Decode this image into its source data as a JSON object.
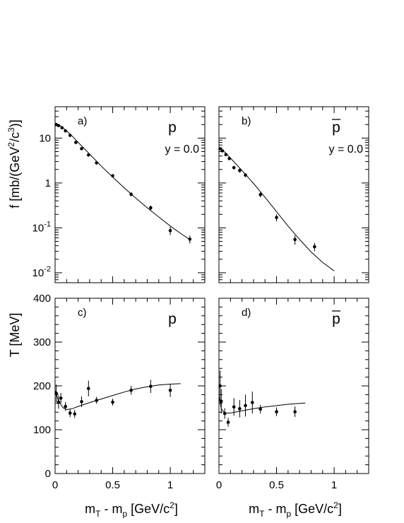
{
  "figure": {
    "ylabel_top": "f [mb/(GeV",
    "ylabel_top_sup1": "2",
    "ylabel_top_mid": "/c",
    "ylabel_top_sup2": "3",
    "ylabel_top_end": ")]",
    "ylabel_bottom": "T [MeV]",
    "xlabel_main": "m",
    "xlabel_sub1": "T",
    "xlabel_mid": " - m",
    "xlabel_sub2": "p",
    "xlabel_end": " [GeV/c",
    "xlabel_sup": "2",
    "xlabel_close": "]"
  },
  "chart_data": [
    {
      "id": "a",
      "type": "scatter",
      "panel_label": "a)",
      "particle": "p",
      "particle_bar": false,
      "rapidity": "y = 0.0",
      "yscale": "log",
      "xlim": [
        0,
        1.3
      ],
      "ylim": [
        0.006,
        50
      ],
      "ytick_labels": [
        {
          "v": 0.01,
          "base": "10",
          "exp": "-2"
        },
        {
          "v": 0.1,
          "base": "10",
          "exp": "-1"
        },
        {
          "v": 1,
          "base": "1",
          "exp": ""
        },
        {
          "v": 10,
          "base": "10",
          "exp": ""
        }
      ],
      "points": [
        {
          "x": 0.01,
          "y": 20,
          "err": 1.2
        },
        {
          "x": 0.03,
          "y": 19,
          "err": 1.2
        },
        {
          "x": 0.06,
          "y": 17,
          "err": 1.0
        },
        {
          "x": 0.09,
          "y": 14.5,
          "err": 1.0
        },
        {
          "x": 0.13,
          "y": 11.5,
          "err": 0.8
        },
        {
          "x": 0.18,
          "y": 8.0,
          "err": 0.5
        },
        {
          "x": 0.23,
          "y": 5.8,
          "err": 0.4
        },
        {
          "x": 0.29,
          "y": 4.2,
          "err": 0.3
        },
        {
          "x": 0.36,
          "y": 2.8,
          "err": 0.2
        },
        {
          "x": 0.5,
          "y": 1.45,
          "err": 0.12
        },
        {
          "x": 0.66,
          "y": 0.56,
          "err": 0.06
        },
        {
          "x": 0.83,
          "y": 0.28,
          "err": 0.035
        },
        {
          "x": 1.0,
          "y": 0.087,
          "err": 0.018
        },
        {
          "x": 1.17,
          "y": 0.056,
          "err": 0.011
        }
      ],
      "fit": [
        {
          "x": 0.0,
          "y": 21.5
        },
        {
          "x": 0.05,
          "y": 18.5
        },
        {
          "x": 0.1,
          "y": 14.5
        },
        {
          "x": 0.15,
          "y": 11
        },
        {
          "x": 0.2,
          "y": 8.0
        },
        {
          "x": 0.3,
          "y": 4.4
        },
        {
          "x": 0.4,
          "y": 2.4
        },
        {
          "x": 0.5,
          "y": 1.35
        },
        {
          "x": 0.6,
          "y": 0.78
        },
        {
          "x": 0.7,
          "y": 0.46
        },
        {
          "x": 0.8,
          "y": 0.28
        },
        {
          "x": 0.9,
          "y": 0.175
        },
        {
          "x": 1.0,
          "y": 0.11
        },
        {
          "x": 1.1,
          "y": 0.072
        },
        {
          "x": 1.17,
          "y": 0.055
        }
      ]
    },
    {
      "id": "b",
      "type": "scatter",
      "panel_label": "b)",
      "particle": "p",
      "particle_bar": true,
      "rapidity": "y = 0.0",
      "yscale": "log",
      "xlim": [
        0,
        1.3
      ],
      "ylim": [
        0.006,
        50
      ],
      "ytick_labels": [],
      "points": [
        {
          "x": 0.01,
          "y": 5.8,
          "err": 0.4
        },
        {
          "x": 0.03,
          "y": 5.2,
          "err": 0.4
        },
        {
          "x": 0.06,
          "y": 4.3,
          "err": 0.35
        },
        {
          "x": 0.09,
          "y": 3.5,
          "err": 0.3
        },
        {
          "x": 0.13,
          "y": 2.2,
          "err": 0.2
        },
        {
          "x": 0.18,
          "y": 1.9,
          "err": 0.2
        },
        {
          "x": 0.23,
          "y": 1.5,
          "err": 0.15
        },
        {
          "x": 0.36,
          "y": 0.55,
          "err": 0.07
        },
        {
          "x": 0.5,
          "y": 0.17,
          "err": 0.03
        },
        {
          "x": 0.66,
          "y": 0.055,
          "err": 0.013
        },
        {
          "x": 0.83,
          "y": 0.038,
          "err": 0.008
        }
      ],
      "fit": [
        {
          "x": 0.0,
          "y": 6.0
        },
        {
          "x": 0.05,
          "y": 4.9
        },
        {
          "x": 0.1,
          "y": 3.6
        },
        {
          "x": 0.2,
          "y": 1.9
        },
        {
          "x": 0.3,
          "y": 0.98
        },
        {
          "x": 0.4,
          "y": 0.48
        },
        {
          "x": 0.5,
          "y": 0.23
        },
        {
          "x": 0.6,
          "y": 0.11
        },
        {
          "x": 0.7,
          "y": 0.055
        },
        {
          "x": 0.8,
          "y": 0.029
        },
        {
          "x": 0.9,
          "y": 0.017
        },
        {
          "x": 1.0,
          "y": 0.011
        }
      ]
    },
    {
      "id": "c",
      "type": "scatter",
      "panel_label": "c)",
      "particle": "p",
      "particle_bar": false,
      "rapidity": "",
      "yscale": "linear",
      "xlim": [
        0,
        1.3
      ],
      "ylim": [
        0,
        400
      ],
      "xtick_labels": [
        {
          "v": 0,
          "label": "0"
        },
        {
          "v": 0.5,
          "label": "0.5"
        },
        {
          "v": 1,
          "label": "1"
        }
      ],
      "ytick_labels": [
        {
          "v": 0,
          "label": "0"
        },
        {
          "v": 100,
          "label": "100"
        },
        {
          "v": 200,
          "label": "200"
        },
        {
          "v": 300,
          "label": "300"
        },
        {
          "v": 400,
          "label": "400"
        }
      ],
      "points": [
        {
          "x": 0.01,
          "y": 183,
          "err": 20
        },
        {
          "x": 0.03,
          "y": 163,
          "err": 15
        },
        {
          "x": 0.05,
          "y": 172,
          "err": 12
        },
        {
          "x": 0.09,
          "y": 153,
          "err": 10
        },
        {
          "x": 0.13,
          "y": 138,
          "err": 9
        },
        {
          "x": 0.17,
          "y": 136,
          "err": 9
        },
        {
          "x": 0.23,
          "y": 164,
          "err": 12
        },
        {
          "x": 0.29,
          "y": 194,
          "err": 18
        },
        {
          "x": 0.36,
          "y": 167,
          "err": 8
        },
        {
          "x": 0.5,
          "y": 163,
          "err": 8
        },
        {
          "x": 0.66,
          "y": 190,
          "err": 10
        },
        {
          "x": 0.83,
          "y": 199,
          "err": 15
        },
        {
          "x": 1.0,
          "y": 190,
          "err": 15
        }
      ],
      "fit": [
        {
          "x": 0.0,
          "y": 190
        },
        {
          "x": 0.03,
          "y": 165
        },
        {
          "x": 0.07,
          "y": 150
        },
        {
          "x": 0.1,
          "y": 146
        },
        {
          "x": 0.15,
          "y": 148
        },
        {
          "x": 0.2,
          "y": 153
        },
        {
          "x": 0.3,
          "y": 162
        },
        {
          "x": 0.4,
          "y": 170
        },
        {
          "x": 0.5,
          "y": 178
        },
        {
          "x": 0.6,
          "y": 186
        },
        {
          "x": 0.7,
          "y": 193
        },
        {
          "x": 0.8,
          "y": 198
        },
        {
          "x": 0.9,
          "y": 202
        },
        {
          "x": 1.0,
          "y": 204
        },
        {
          "x": 1.09,
          "y": 205
        }
      ]
    },
    {
      "id": "d",
      "type": "scatter",
      "panel_label": "d)",
      "particle": "p",
      "particle_bar": true,
      "rapidity": "",
      "yscale": "linear",
      "xlim": [
        0,
        1.3
      ],
      "ylim": [
        0,
        400
      ],
      "xtick_labels": [
        {
          "v": 0,
          "label": "0"
        },
        {
          "v": 0.5,
          "label": "0.5"
        },
        {
          "v": 1,
          "label": "1"
        }
      ],
      "ytick_labels": [],
      "points": [
        {
          "x": 0.01,
          "y": 200,
          "err": 35
        },
        {
          "x": 0.02,
          "y": 165,
          "err": 28
        },
        {
          "x": 0.05,
          "y": 137,
          "err": 12
        },
        {
          "x": 0.08,
          "y": 117,
          "err": 10
        },
        {
          "x": 0.13,
          "y": 152,
          "err": 20
        },
        {
          "x": 0.18,
          "y": 148,
          "err": 20
        },
        {
          "x": 0.23,
          "y": 155,
          "err": 25
        },
        {
          "x": 0.29,
          "y": 162,
          "err": 25
        },
        {
          "x": 0.36,
          "y": 147,
          "err": 10
        },
        {
          "x": 0.5,
          "y": 141,
          "err": 10
        },
        {
          "x": 0.66,
          "y": 141,
          "err": 12
        }
      ],
      "fit": [
        {
          "x": 0.0,
          "y": 175
        },
        {
          "x": 0.02,
          "y": 148
        },
        {
          "x": 0.05,
          "y": 138
        },
        {
          "x": 0.1,
          "y": 138
        },
        {
          "x": 0.2,
          "y": 143
        },
        {
          "x": 0.3,
          "y": 148
        },
        {
          "x": 0.4,
          "y": 152
        },
        {
          "x": 0.5,
          "y": 155
        },
        {
          "x": 0.6,
          "y": 158
        },
        {
          "x": 0.7,
          "y": 160
        },
        {
          "x": 0.75,
          "y": 161
        }
      ]
    }
  ]
}
